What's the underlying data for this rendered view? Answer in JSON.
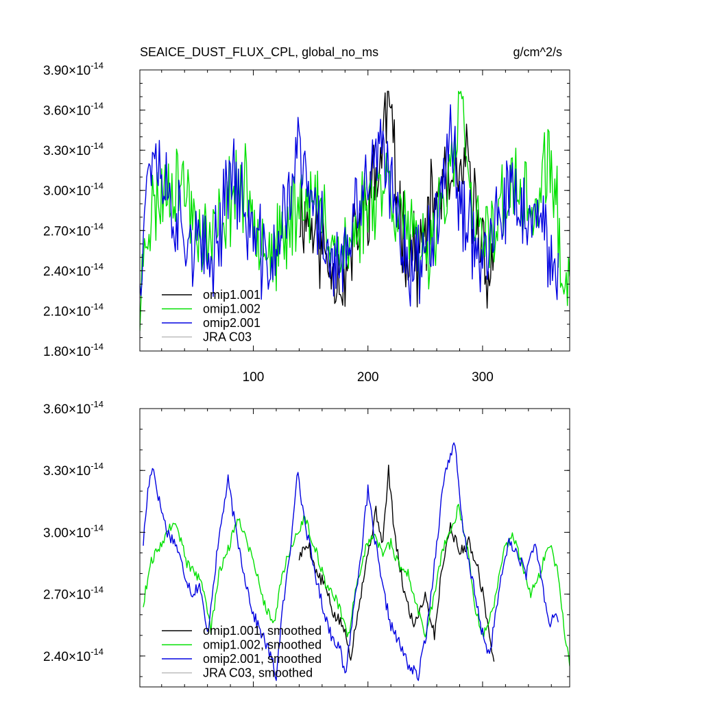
{
  "chart_data": [
    {
      "type": "line",
      "title": "SEAICE_DUST_FLUX_CPL, global_no_ms",
      "units": "g/cm^2/s",
      "xlim": [
        1,
        376
      ],
      "x_ticks": [
        100,
        200,
        300
      ],
      "x_tick_labels": [
        "100",
        "200",
        "300"
      ],
      "ylim": [
        1.8e-14,
        3.9e-14
      ],
      "y_ticks": [
        1.8e-14,
        2.1e-14,
        2.4e-14,
        2.7e-14,
        3e-14,
        3.3e-14,
        3.6e-14,
        3.9e-14
      ],
      "y_tick_mantissas": [
        "1.80",
        "2.10",
        "2.40",
        "2.70",
        "3.00",
        "3.30",
        "3.60",
        "3.90"
      ],
      "y_tick_sep": "×10",
      "y_tick_exp": "-14",
      "legend_position": "bottom-left",
      "legend": [
        {
          "label": "omip1.001",
          "color": "#000000"
        },
        {
          "label": "omip1.002",
          "color": "#00e000"
        },
        {
          "label": "omip2.001",
          "color": "#0000e0"
        },
        {
          "label": "JRA C03",
          "color": "#bbbbbb"
        }
      ],
      "series": [
        {
          "name": "omip1.001",
          "color": "#000000",
          "start": 140,
          "x_end": 310,
          "ymin": 2.12,
          "ymax": 3.74,
          "seed": 11,
          "points": [
            [
              140,
              2.85
            ],
            [
              150,
              2.78
            ],
            [
              160,
              2.55
            ],
            [
              170,
              2.45
            ],
            [
              180,
              2.3
            ],
            [
              190,
              2.7
            ],
            [
              200,
              2.95
            ],
            [
              210,
              3.15
            ],
            [
              218,
              3.74
            ],
            [
              225,
              2.95
            ],
            [
              235,
              2.55
            ],
            [
              245,
              2.5
            ],
            [
              255,
              2.85
            ],
            [
              265,
              3.05
            ],
            [
              275,
              2.95
            ],
            [
              285,
              3.2
            ],
            [
              295,
              2.8
            ],
            [
              305,
              2.4
            ],
            [
              310,
              2.35
            ]
          ]
        },
        {
          "name": "omip1.002",
          "color": "#00e000",
          "start": 1,
          "x_end": 376,
          "ymin": 1.95,
          "ymax": 3.74,
          "seed": 23,
          "points": [
            [
              1,
              1.95
            ],
            [
              5,
              2.7
            ],
            [
              15,
              2.9
            ],
            [
              25,
              3.05
            ],
            [
              35,
              3.1
            ],
            [
              45,
              2.9
            ],
            [
              55,
              2.65
            ],
            [
              65,
              2.6
            ],
            [
              75,
              2.85
            ],
            [
              85,
              3.05
            ],
            [
              95,
              2.95
            ],
            [
              105,
              2.75
            ],
            [
              115,
              2.55
            ],
            [
              125,
              2.55
            ],
            [
              135,
              2.85
            ],
            [
              145,
              3.0
            ],
            [
              155,
              2.85
            ],
            [
              165,
              2.75
            ],
            [
              175,
              2.55
            ],
            [
              185,
              2.55
            ],
            [
              195,
              2.85
            ],
            [
              205,
              3.0
            ],
            [
              215,
              3.1
            ],
            [
              225,
              2.9
            ],
            [
              235,
              2.7
            ],
            [
              245,
              2.45
            ],
            [
              255,
              2.65
            ],
            [
              265,
              2.95
            ],
            [
              275,
              3.1
            ],
            [
              281,
              3.74
            ],
            [
              290,
              2.8
            ],
            [
              300,
              2.6
            ],
            [
              310,
              2.75
            ],
            [
              320,
              2.95
            ],
            [
              330,
              3.0
            ],
            [
              340,
              2.85
            ],
            [
              350,
              2.9
            ],
            [
              358,
              3.3
            ],
            [
              365,
              2.8
            ],
            [
              372,
              2.2
            ],
            [
              376,
              2.35
            ]
          ]
        },
        {
          "name": "omip2.001",
          "color": "#0000e0",
          "start": 1,
          "x_end": 366,
          "ymin": 2.1,
          "ymax": 3.64,
          "seed": 37,
          "points": [
            [
              1,
              2.4
            ],
            [
              6,
              3.0
            ],
            [
              12,
              3.35
            ],
            [
              20,
              3.15
            ],
            [
              30,
              2.85
            ],
            [
              40,
              2.7
            ],
            [
              50,
              2.6
            ],
            [
              60,
              2.4
            ],
            [
              70,
              2.7
            ],
            [
              80,
              3.2
            ],
            [
              90,
              2.9
            ],
            [
              100,
              2.65
            ],
            [
              110,
              2.45
            ],
            [
              120,
              2.5
            ],
            [
              130,
              2.95
            ],
            [
              140,
              3.3
            ],
            [
              150,
              2.9
            ],
            [
              160,
              2.7
            ],
            [
              170,
              2.45
            ],
            [
              180,
              2.45
            ],
            [
              190,
              2.8
            ],
            [
              200,
              3.1
            ],
            [
              210,
              3.3
            ],
            [
              220,
              3.0
            ],
            [
              230,
              2.65
            ],
            [
              240,
              2.4
            ],
            [
              250,
              2.55
            ],
            [
              260,
              2.9
            ],
            [
              270,
              3.4
            ],
            [
              280,
              3.0
            ],
            [
              290,
              2.7
            ],
            [
              300,
              2.5
            ],
            [
              310,
              2.6
            ],
            [
              320,
              2.9
            ],
            [
              330,
              2.95
            ],
            [
              340,
              2.75
            ],
            [
              350,
              2.7
            ],
            [
              360,
              2.45
            ],
            [
              366,
              2.55
            ]
          ]
        }
      ]
    },
    {
      "type": "line",
      "title": "",
      "xlim": [
        1,
        376
      ],
      "x_ticks": [
        100,
        200,
        300
      ],
      "x_tick_labels": [],
      "ylim": [
        2.25e-14,
        3.6e-14
      ],
      "y_ticks": [
        2.4e-14,
        2.7e-14,
        3e-14,
        3.3e-14,
        3.6e-14
      ],
      "y_tick_mantissas": [
        "2.40",
        "2.70",
        "3.00",
        "3.30",
        "3.60"
      ],
      "y_tick_sep": "×10",
      "y_tick_exp": "-14",
      "legend_position": "bottom-left",
      "legend": [
        {
          "label": "omip1.001, smoothed",
          "color": "#000000"
        },
        {
          "label": "omip1.002, smoothed",
          "color": "#00e000"
        },
        {
          "label": "omip2.001, smoothed",
          "color": "#0000e0"
        },
        {
          "label": "JRA C03, smoothed",
          "color": "#bbbbbb"
        }
      ],
      "series": [
        {
          "name": "omip1.001, smoothed",
          "color": "#000000",
          "x_end": 310,
          "noise": 0.03,
          "seed": 5,
          "points": [
            [
              140,
              2.88
            ],
            [
              148,
              2.95
            ],
            [
              155,
              2.8
            ],
            [
              162,
              2.75
            ],
            [
              170,
              2.6
            ],
            [
              178,
              2.55
            ],
            [
              185,
              2.4
            ],
            [
              192,
              2.65
            ],
            [
              200,
              2.9
            ],
            [
              207,
              3.1
            ],
            [
              213,
              2.95
            ],
            [
              218,
              3.3
            ],
            [
              224,
              2.95
            ],
            [
              232,
              2.7
            ],
            [
              240,
              2.55
            ],
            [
              250,
              2.7
            ],
            [
              258,
              2.5
            ],
            [
              265,
              2.85
            ],
            [
              272,
              3.03
            ],
            [
              280,
              2.9
            ],
            [
              288,
              2.95
            ],
            [
              295,
              2.85
            ],
            [
              302,
              2.65
            ],
            [
              310,
              2.35
            ]
          ]
        },
        {
          "name": "omip1.002, smoothed",
          "color": "#00e000",
          "x_end": 376,
          "noise": 0.025,
          "seed": 9,
          "points": [
            [
              4,
              2.65
            ],
            [
              10,
              2.85
            ],
            [
              20,
              2.95
            ],
            [
              30,
              3.05
            ],
            [
              35,
              3.0
            ],
            [
              42,
              2.85
            ],
            [
              50,
              2.8
            ],
            [
              58,
              2.7
            ],
            [
              63,
              2.52
            ],
            [
              70,
              2.8
            ],
            [
              80,
              2.95
            ],
            [
              87,
              3.08
            ],
            [
              95,
              2.95
            ],
            [
              103,
              2.8
            ],
            [
              110,
              2.65
            ],
            [
              118,
              2.55
            ],
            [
              125,
              2.8
            ],
            [
              135,
              2.95
            ],
            [
              145,
              3.08
            ],
            [
              155,
              2.9
            ],
            [
              163,
              2.75
            ],
            [
              170,
              2.7
            ],
            [
              176,
              2.62
            ],
            [
              183,
              2.5
            ],
            [
              190,
              2.75
            ],
            [
              198,
              2.92
            ],
            [
              205,
              3.0
            ],
            [
              213,
              2.9
            ],
            [
              220,
              2.95
            ],
            [
              228,
              2.82
            ],
            [
              235,
              2.8
            ],
            [
              242,
              2.65
            ],
            [
              250,
              2.5
            ],
            [
              258,
              2.7
            ],
            [
              265,
              2.92
            ],
            [
              272,
              3.0
            ],
            [
              279,
              3.12
            ],
            [
              286,
              2.95
            ],
            [
              293,
              2.65
            ],
            [
              300,
              2.5
            ],
            [
              308,
              2.6
            ],
            [
              318,
              2.9
            ],
            [
              326,
              3.0
            ],
            [
              334,
              2.85
            ],
            [
              342,
              2.7
            ],
            [
              350,
              2.8
            ],
            [
              358,
              2.95
            ],
            [
              366,
              2.8
            ],
            [
              372,
              2.5
            ],
            [
              376,
              2.35
            ]
          ]
        },
        {
          "name": "omip2.001, smoothed",
          "color": "#0000e0",
          "x_end": 366,
          "noise": 0.03,
          "seed": 17,
          "points": [
            [
              4,
              2.95
            ],
            [
              8,
              3.2
            ],
            [
              12,
              3.33
            ],
            [
              18,
              3.15
            ],
            [
              25,
              3.0
            ],
            [
              32,
              2.95
            ],
            [
              40,
              2.8
            ],
            [
              47,
              2.7
            ],
            [
              53,
              2.75
            ],
            [
              60,
              2.5
            ],
            [
              65,
              2.75
            ],
            [
              72,
              3.05
            ],
            [
              78,
              3.25
            ],
            [
              85,
              3.0
            ],
            [
              92,
              2.8
            ],
            [
              100,
              2.6
            ],
            [
              108,
              2.5
            ],
            [
              115,
              2.4
            ],
            [
              120,
              2.3
            ],
            [
              125,
              2.6
            ],
            [
              132,
              2.9
            ],
            [
              138,
              3.3
            ],
            [
              145,
              3.05
            ],
            [
              152,
              2.85
            ],
            [
              160,
              2.65
            ],
            [
              168,
              2.5
            ],
            [
              175,
              2.45
            ],
            [
              180,
              2.3
            ],
            [
              188,
              2.65
            ],
            [
              195,
              2.95
            ],
            [
              200,
              3.2
            ],
            [
              205,
              3.0
            ],
            [
              212,
              2.75
            ],
            [
              220,
              2.55
            ],
            [
              228,
              2.45
            ],
            [
              236,
              2.35
            ],
            [
              244,
              2.3
            ],
            [
              252,
              2.55
            ],
            [
              260,
              2.95
            ],
            [
              266,
              3.25
            ],
            [
              270,
              3.35
            ],
            [
              276,
              3.42
            ],
            [
              282,
              3.05
            ],
            [
              290,
              2.8
            ],
            [
              298,
              2.55
            ],
            [
              306,
              2.4
            ],
            [
              314,
              2.7
            ],
            [
              322,
              2.95
            ],
            [
              330,
              2.9
            ],
            [
              338,
              2.8
            ],
            [
              345,
              2.95
            ],
            [
              352,
              2.75
            ],
            [
              358,
              2.55
            ],
            [
              362,
              2.6
            ],
            [
              366,
              2.58
            ]
          ]
        }
      ]
    }
  ]
}
